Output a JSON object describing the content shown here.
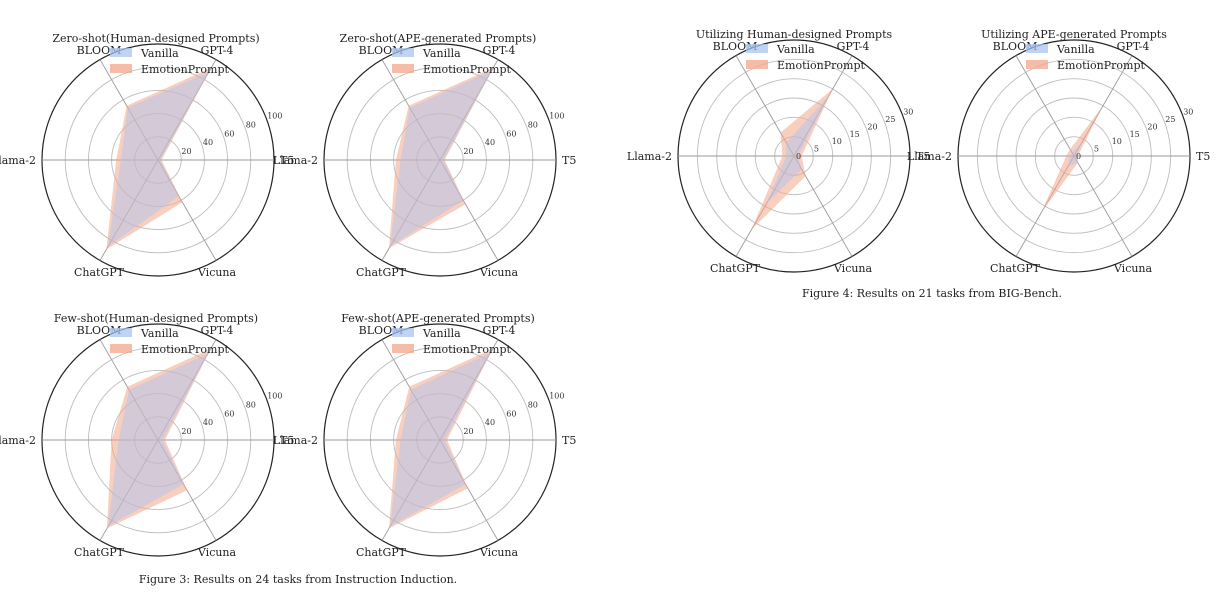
{
  "colors": {
    "vanilla": "#a9c4f2",
    "emotion": "#f2a58a",
    "overlap": "#d9b6b2",
    "ring": "#bdbdbd",
    "outer": "#222222"
  },
  "figure3": {
    "caption": "Figure 3: Results on 24 tasks from Instruction Induction."
  },
  "figure4": {
    "caption": "Figure 4: Results on 21 tasks from BIG-Bench."
  },
  "chart_data": [
    {
      "type": "radar",
      "title": "Zero-shot(Human-designed Prompts)",
      "axes": [
        "GPT-4",
        "T5",
        "Vicuna",
        "ChatGPT",
        "Llama-2",
        "BLOOM"
      ],
      "rmax": 100,
      "ticks": [
        20,
        40,
        60,
        80,
        100
      ],
      "legend": [
        "Vanilla",
        "EmotionPrompt"
      ],
      "legend_position": "top-left",
      "series": [
        {
          "name": "Vanilla",
          "values": [
            88,
            2,
            36,
            86,
            32,
            52
          ]
        },
        {
          "name": "EmotionPrompt",
          "values": [
            92,
            3,
            42,
            89,
            36,
            54
          ]
        }
      ]
    },
    {
      "type": "radar",
      "title": "Zero-shot(APE-generated Prompts)",
      "axes": [
        "GPT-4",
        "T5",
        "Vicuna",
        "ChatGPT",
        "Llama-2",
        "BLOOM"
      ],
      "rmax": 100,
      "ticks": [
        20,
        40,
        60,
        80,
        100
      ],
      "legend": [
        "Vanilla",
        "EmotionPrompt"
      ],
      "legend_position": "top-left",
      "series": [
        {
          "name": "Vanilla",
          "values": [
            89,
            3,
            40,
            86,
            34,
            52
          ]
        },
        {
          "name": "EmotionPrompt",
          "values": [
            92,
            4,
            44,
            88,
            38,
            54
          ]
        }
      ]
    },
    {
      "type": "radar",
      "title": "Few-shot(Human-designed Prompts)",
      "axes": [
        "GPT-4",
        "T5",
        "Vicuna",
        "ChatGPT",
        "Llama-2",
        "BLOOM"
      ],
      "rmax": 100,
      "ticks": [
        20,
        40,
        60,
        80,
        100
      ],
      "legend": [
        "Vanilla",
        "EmotionPrompt"
      ],
      "legend_position": "top-left",
      "series": [
        {
          "name": "Vanilla",
          "values": [
            86,
            4,
            44,
            86,
            34,
            50
          ]
        },
        {
          "name": "EmotionPrompt",
          "values": [
            91,
            6,
            50,
            88,
            40,
            53
          ]
        }
      ]
    },
    {
      "type": "radar",
      "title": "Few-shot(APE-generated Prompts)",
      "axes": [
        "GPT-4",
        "T5",
        "Vicuna",
        "ChatGPT",
        "Llama-2",
        "BLOOM"
      ],
      "rmax": 100,
      "ticks": [
        20,
        40,
        60,
        80,
        100
      ],
      "legend": [
        "Vanilla",
        "EmotionPrompt"
      ],
      "legend_position": "top-left",
      "series": [
        {
          "name": "Vanilla",
          "values": [
            87,
            4,
            44,
            86,
            34,
            50
          ]
        },
        {
          "name": "EmotionPrompt",
          "values": [
            91,
            6,
            48,
            88,
            38,
            53
          ]
        }
      ]
    },
    {
      "type": "radar",
      "title": "Utilizing Human-designed Prompts",
      "axes": [
        "GPT-4",
        "T5",
        "Vicuna",
        "ChatGPT",
        "Llama-2",
        "BLOOM"
      ],
      "rmax": 30,
      "ticks": [
        0,
        5,
        10,
        15,
        20,
        25,
        30
      ],
      "legend": [
        "Vanilla",
        "EmotionPrompt"
      ],
      "legend_position": "top-left",
      "series": [
        {
          "name": "Vanilla",
          "values": [
            18,
            1,
            4,
            14,
            2,
            4
          ]
        },
        {
          "name": "EmotionPrompt",
          "values": [
            20,
            2,
            6,
            22,
            3,
            7
          ]
        }
      ]
    },
    {
      "type": "radar",
      "title": "Utilizing APE-generated Prompts",
      "axes": [
        "GPT-4",
        "T5",
        "Vicuna",
        "ChatGPT",
        "Llama-2",
        "BLOOM"
      ],
      "rmax": 30,
      "ticks": [
        0,
        5,
        10,
        15,
        20,
        25,
        30
      ],
      "legend": [
        "Vanilla",
        "EmotionPrompt"
      ],
      "legend_position": "top-left",
      "series": [
        {
          "name": "Vanilla",
          "values": [
            4,
            0.5,
            2,
            3,
            1,
            1
          ]
        },
        {
          "name": "EmotionPrompt",
          "values": [
            15,
            1,
            2,
            17,
            2,
            2
          ]
        }
      ]
    }
  ]
}
